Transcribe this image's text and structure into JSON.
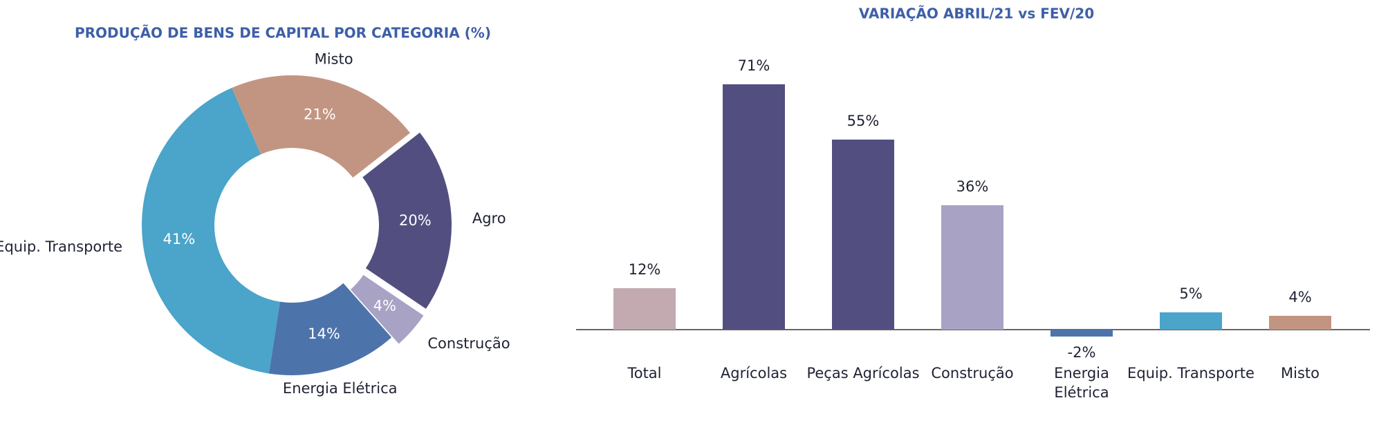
{
  "chart_data": [
    {
      "type": "pie",
      "title": "PRODUÇÃO DE BENS DE CAPITAL POR CATEGORIA (%)",
      "categories": [
        "Agro",
        "Construção",
        "Energia Elétrica",
        "Equip. Transporte",
        "Misto"
      ],
      "values": [
        20,
        4,
        14,
        41,
        21
      ],
      "value_labels": [
        "20%",
        "4%",
        "14%",
        "41%",
        "21%"
      ],
      "colors": [
        "#524f80",
        "#a8a2c5",
        "#4d73ab",
        "#4ba4c9",
        "#c29582"
      ],
      "explode": [
        true,
        true,
        false,
        false,
        false
      ],
      "donut": true
    },
    {
      "type": "bar",
      "title": "VARIAÇÃO ABRIL/21 vs FEV/20",
      "categories": [
        "Total",
        "Agrícolas",
        "Peças Agrícolas",
        "Construção",
        "Energia Elétrica",
        "Equip. Transporte",
        "Misto"
      ],
      "values": [
        12,
        71,
        55,
        36,
        -2,
        5,
        4
      ],
      "value_labels": [
        "12%",
        "71%",
        "55%",
        "36%",
        "-2%",
        "5%",
        "4%"
      ],
      "colors": [
        "#c2aab0",
        "#524f80",
        "#524f80",
        "#a8a2c5",
        "#4d73ab",
        "#4ba4c9",
        "#c29582"
      ]
    }
  ]
}
